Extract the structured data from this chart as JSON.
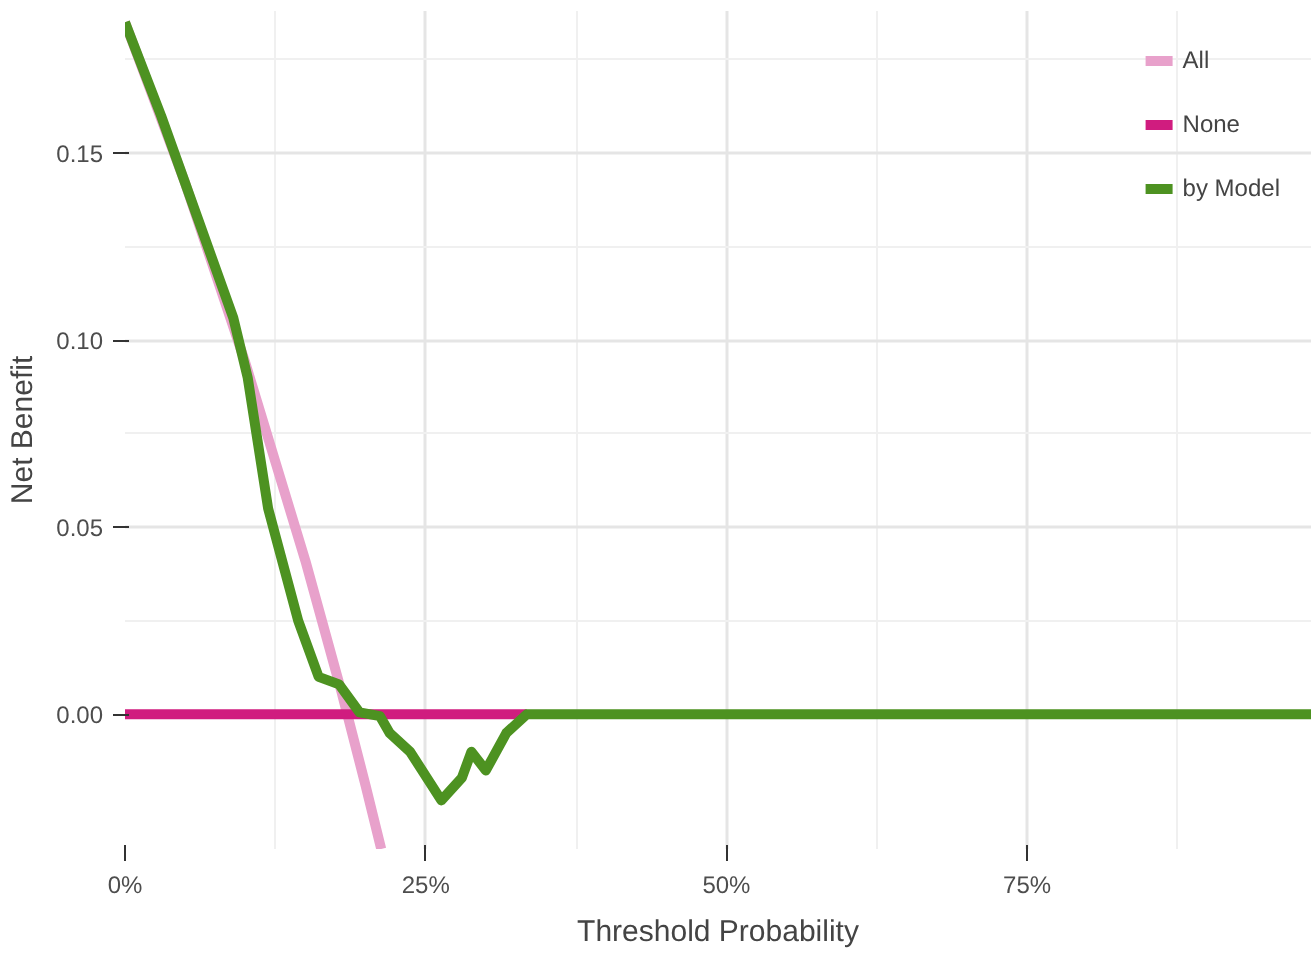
{
  "chart_data": {
    "type": "line",
    "xlabel": "Threshold Probability",
    "ylabel": "Net Benefit",
    "xlim": [
      0,
      98.6
    ],
    "ylim": [
      -0.036,
      0.188
    ],
    "xticks": [
      {
        "value": 0,
        "label": "0%"
      },
      {
        "value": 25,
        "label": "25%"
      },
      {
        "value": 50,
        "label": "50%"
      },
      {
        "value": 75,
        "label": "75%"
      }
    ],
    "yticks": [
      {
        "value": 0,
        "label": "0.00"
      },
      {
        "value": 0.05,
        "label": "0.05"
      },
      {
        "value": 0.1,
        "label": "0.10"
      },
      {
        "value": 0.15,
        "label": "0.15"
      }
    ],
    "grid": true,
    "legend": "top right",
    "line_style": "solid",
    "marker": "none",
    "series": [
      {
        "name": "All",
        "color": "#e8a1cb",
        "x": [
          0,
          5,
          10,
          15,
          18,
          20,
          21.3
        ],
        "values": [
          0.185,
          0.142,
          0.094,
          0.041,
          0.006,
          -0.019,
          -0.036
        ]
      },
      {
        "name": "None",
        "color": "#d01c7f",
        "x": [
          0,
          33.4
        ],
        "values": [
          0,
          0
        ]
      },
      {
        "name": "by Model",
        "color": "#4d9221",
        "x": [
          0,
          3,
          6,
          9,
          10.2,
          11.9,
          14.4,
          16.1,
          17.8,
          19.5,
          21.2,
          22,
          23.7,
          26.3,
          28,
          28.8,
          30,
          31.7,
          33.4,
          50,
          75,
          98.6
        ],
        "values": [
          0.185,
          0.16,
          0.133,
          0.106,
          0.09,
          0.055,
          0.025,
          0.01,
          0.008,
          0.0005,
          -0.0005,
          -0.005,
          -0.01,
          -0.023,
          -0.017,
          -0.01,
          -0.015,
          -0.005,
          0,
          0,
          0,
          0
        ]
      }
    ]
  }
}
